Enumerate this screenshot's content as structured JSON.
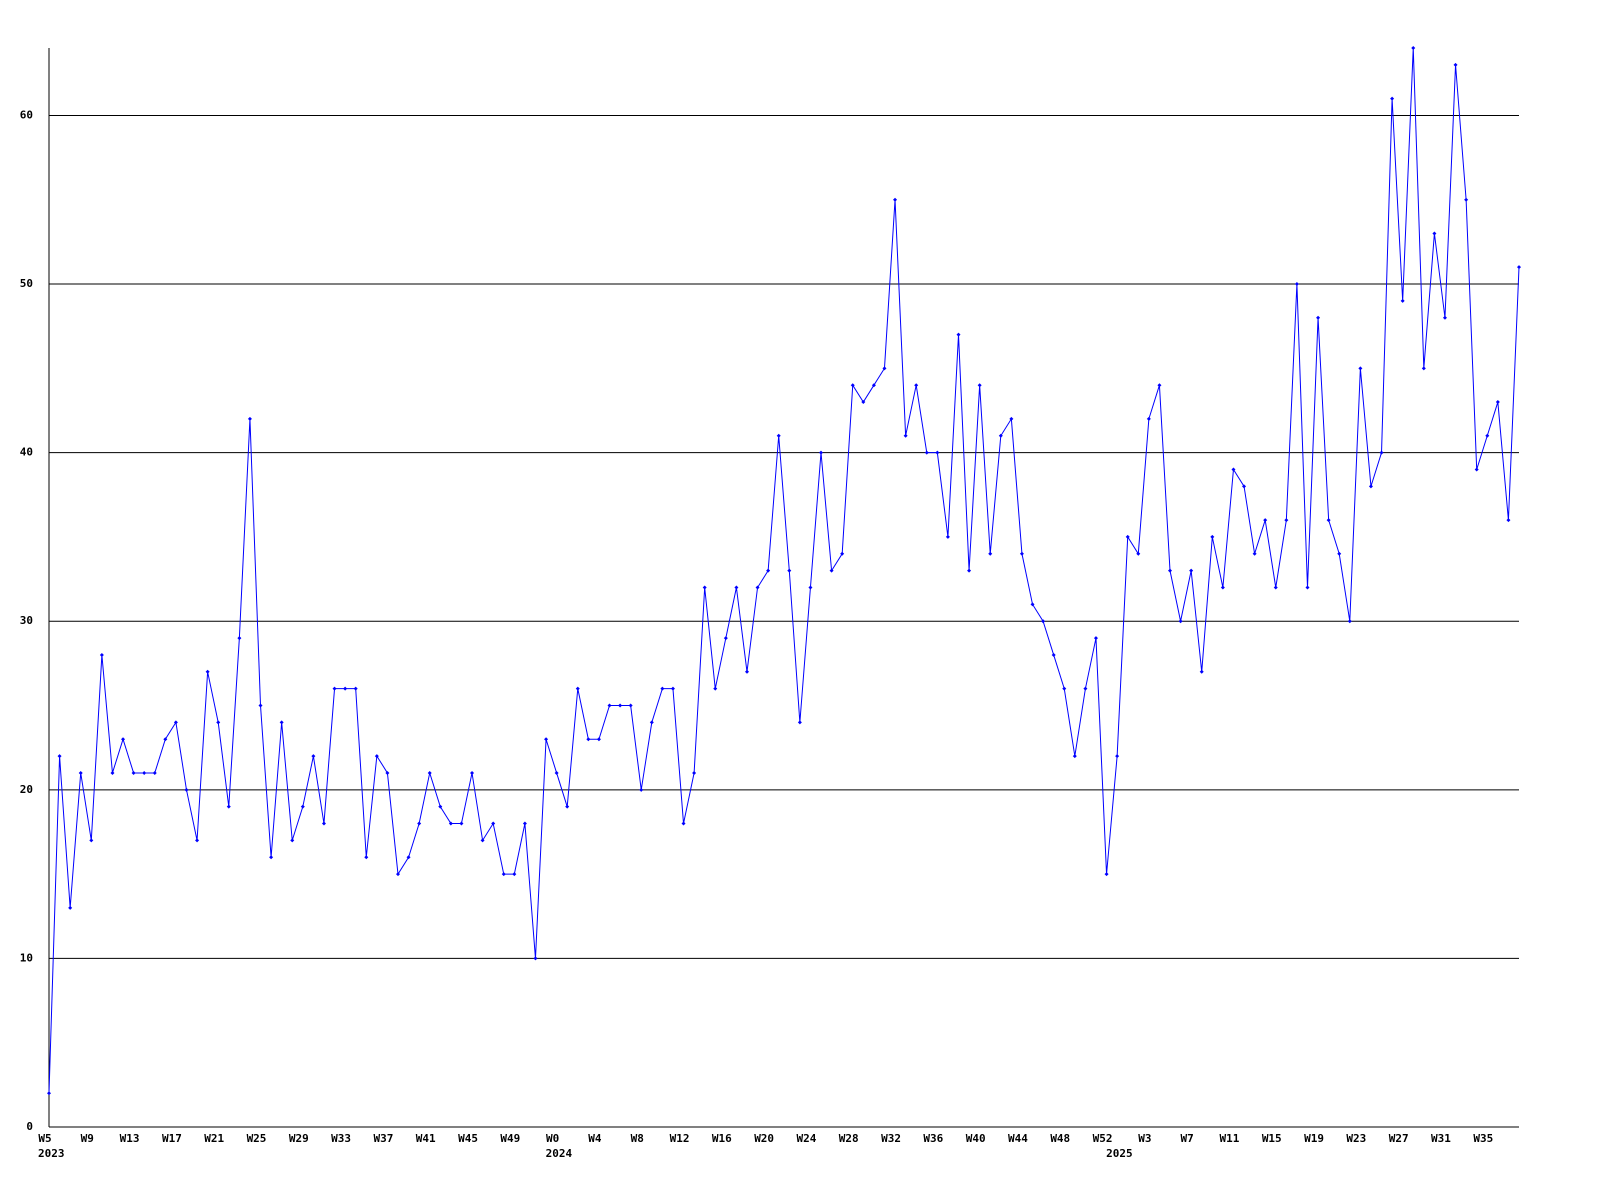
{
  "chart_data": {
    "type": "line",
    "ylim": [
      0,
      64
    ],
    "yticks": [
      0,
      10,
      20,
      30,
      40,
      50,
      60
    ],
    "grid": true,
    "categories": [
      "W5",
      null,
      null,
      null,
      "W9",
      null,
      null,
      null,
      "W13",
      null,
      null,
      null,
      "W17",
      null,
      null,
      null,
      "W21",
      null,
      null,
      null,
      "W25",
      null,
      null,
      null,
      "W29",
      null,
      null,
      null,
      "W33",
      null,
      null,
      null,
      "W37",
      null,
      null,
      null,
      "W41",
      null,
      null,
      null,
      "W45",
      null,
      null,
      null,
      "W49",
      null,
      null,
      null,
      "W0",
      null,
      null,
      null,
      "W4",
      null,
      null,
      null,
      "W8",
      null,
      null,
      null,
      "W12",
      null,
      null,
      null,
      "W16",
      null,
      null,
      null,
      "W20",
      null,
      null,
      null,
      "W24",
      null,
      null,
      null,
      "W28",
      null,
      null,
      null,
      "W32",
      null,
      null,
      null,
      "W36",
      null,
      null,
      null,
      "W40",
      null,
      null,
      null,
      "W44",
      null,
      null,
      null,
      "W48",
      null,
      null,
      null,
      "W52",
      null,
      null,
      null,
      "W3",
      null,
      null,
      null,
      "W7",
      null,
      null,
      null,
      "W11",
      null,
      null,
      null,
      "W15",
      null,
      null,
      null,
      "W19",
      null,
      null,
      null,
      "W23",
      null,
      null,
      null,
      "W27",
      null,
      null,
      null,
      "W31",
      null,
      null,
      null,
      "W35",
      null,
      null,
      null
    ],
    "category_groups": [
      {
        "label": "2023",
        "start": 0
      },
      {
        "label": "2024",
        "start": 48
      },
      {
        "label": "2025",
        "start": 101
      }
    ],
    "series": [
      {
        "color": "#0000ff",
        "values": [
          2,
          22,
          13,
          21,
          17,
          28,
          21,
          23,
          21,
          21,
          21,
          23,
          24,
          20,
          17,
          27,
          24,
          19,
          29,
          42,
          25,
          16,
          24,
          17,
          19,
          22,
          18,
          26,
          26,
          26,
          16,
          22,
          21,
          15,
          16,
          18,
          21,
          19,
          18,
          18,
          21,
          17,
          18,
          15,
          15,
          18,
          10,
          23,
          21,
          19,
          26,
          23,
          23,
          25,
          25,
          25,
          20,
          24,
          26,
          26,
          18,
          21,
          32,
          26,
          29,
          32,
          27,
          32,
          33,
          41,
          33,
          24,
          32,
          40,
          33,
          34,
          44,
          43,
          44,
          45,
          55,
          41,
          44,
          40,
          40,
          35,
          47,
          33,
          44,
          34,
          41,
          42,
          34,
          31,
          30,
          28,
          26,
          22,
          26,
          29,
          15,
          22,
          35,
          34,
          42,
          44,
          33,
          30,
          33,
          27,
          35,
          32,
          39,
          38,
          34,
          36,
          32,
          36,
          50,
          32,
          48,
          36,
          34,
          30,
          45,
          38,
          40,
          61,
          49,
          64,
          45,
          53,
          48,
          63,
          55,
          39,
          41,
          43,
          36,
          51
        ]
      }
    ]
  }
}
